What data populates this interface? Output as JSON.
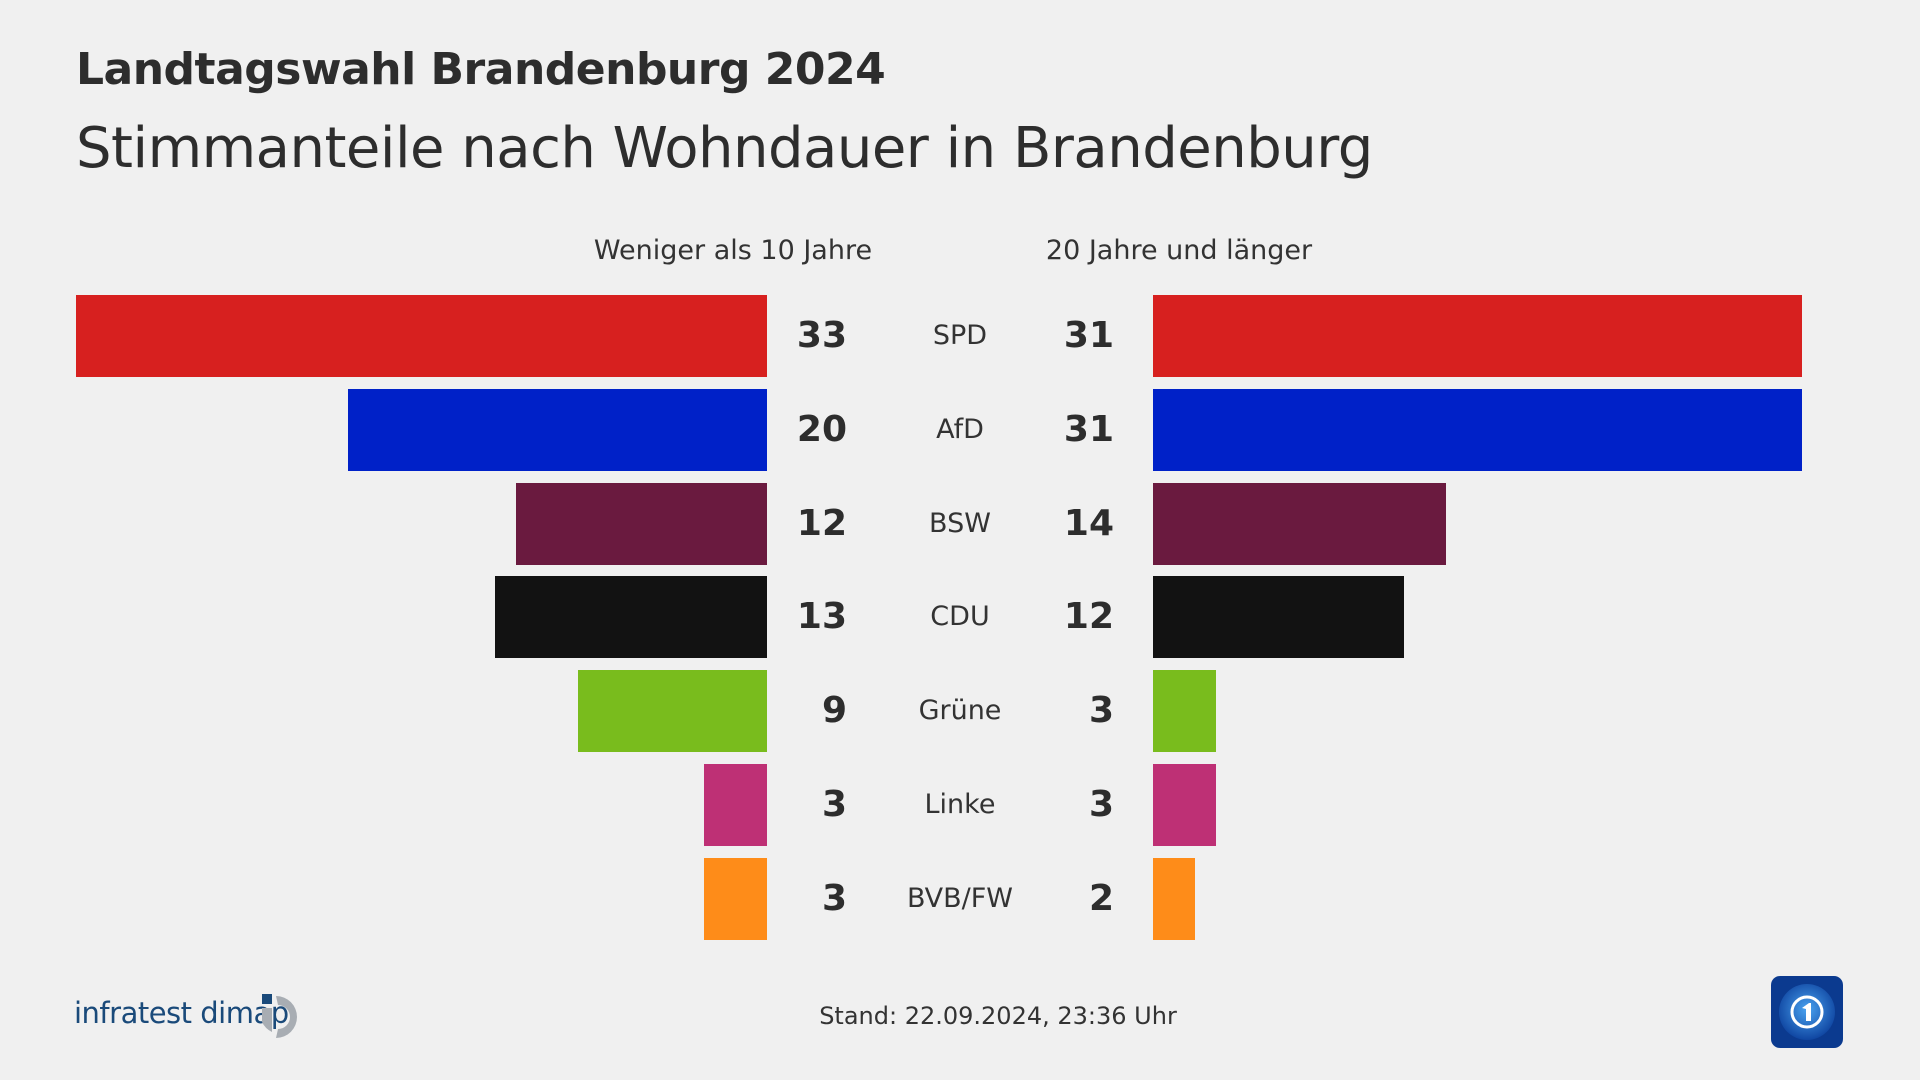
{
  "header": {
    "title": "Landtagswahl Brandenburg 2024",
    "subtitle": "Stimmanteile nach Wohndauer in Brandenburg"
  },
  "chart_data": {
    "type": "bar",
    "orientation": "horizontal-butterfly",
    "categories": [
      "SPD",
      "AfD",
      "BSW",
      "CDU",
      "Grüne",
      "Linke",
      "BVB/FW"
    ],
    "colors": [
      "#d7201f",
      "#0021c8",
      "#6a1a3f",
      "#121212",
      "#79bc1d",
      "#be3075",
      "#fe8c19"
    ],
    "series": [
      {
        "name": "Weniger als 10 Jahre",
        "values": [
          33,
          20,
          12,
          13,
          9,
          3,
          3
        ]
      },
      {
        "name": "20 Jahre und länger",
        "values": [
          31,
          31,
          14,
          12,
          3,
          3,
          2
        ]
      }
    ],
    "unit": "%"
  },
  "footer": {
    "stand": "Stand:  22.09.2024, 23:36 Uhr",
    "source_logo": "infratest dimap",
    "broadcaster_logo": "tagesschau-icon"
  }
}
